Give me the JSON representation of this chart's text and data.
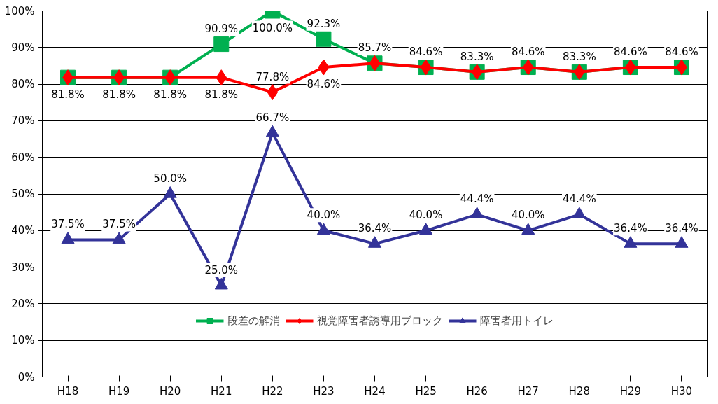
{
  "chart_data": {
    "type": "line",
    "categories": [
      "H18",
      "H19",
      "H20",
      "H21",
      "H22",
      "H23",
      "H24",
      "H25",
      "H26",
      "H27",
      "H28",
      "H29",
      "H30"
    ],
    "ylim": [
      0,
      100
    ],
    "yticks": [
      {
        "value": 0,
        "label": "0%"
      },
      {
        "value": 10,
        "label": "10%"
      },
      {
        "value": 20,
        "label": "20%"
      },
      {
        "value": 30,
        "label": "30%"
      },
      {
        "value": 40,
        "label": "40%"
      },
      {
        "value": 50,
        "label": "50%"
      },
      {
        "value": 60,
        "label": "60%"
      },
      {
        "value": 70,
        "label": "70%"
      },
      {
        "value": 80,
        "label": "80%"
      },
      {
        "value": 90,
        "label": "90%"
      },
      {
        "value": 100,
        "label": "100%"
      }
    ],
    "grid": "y",
    "legend": "bottom",
    "line_style": "solid",
    "series": [
      {
        "name": "段差の解消",
        "color": "#00b050",
        "marker": "square",
        "values": [
          81.8,
          81.8,
          81.8,
          90.9,
          100.0,
          92.3,
          85.7,
          84.6,
          83.3,
          84.6,
          83.3,
          84.6,
          84.6
        ],
        "value_labels": [
          null,
          null,
          null,
          "90.9%",
          "100.0%",
          "92.3%",
          "85.7%",
          "84.6%",
          "83.3%",
          "84.6%",
          "83.3%",
          "84.6%",
          "84.6%"
        ]
      },
      {
        "name": "視覚障害者誘導用ブロック",
        "color": "#ff0000",
        "marker": "diamond",
        "values": [
          81.8,
          81.8,
          81.8,
          81.8,
          77.8,
          84.6,
          85.7,
          84.6,
          83.3,
          84.6,
          83.3,
          84.6,
          84.6
        ],
        "value_labels": [
          "81.8%",
          "81.8%",
          "81.8%",
          "81.8%",
          "77.8%",
          "84.6%",
          null,
          null,
          null,
          null,
          null,
          null,
          null
        ]
      },
      {
        "name": "障害者用トイレ",
        "color": "#333399",
        "marker": "triangle",
        "values": [
          37.5,
          37.5,
          50.0,
          25.0,
          66.7,
          40.0,
          36.4,
          40.0,
          44.4,
          40.0,
          44.4,
          36.4,
          36.4
        ],
        "value_labels": [
          "37.5%",
          "37.5%",
          "50.0%",
          "25.0%",
          "66.7%",
          "40.0%",
          "36.4%",
          "40.0%",
          "44.4%",
          "40.0%",
          "44.4%",
          "36.4%",
          "36.4%"
        ]
      }
    ]
  }
}
